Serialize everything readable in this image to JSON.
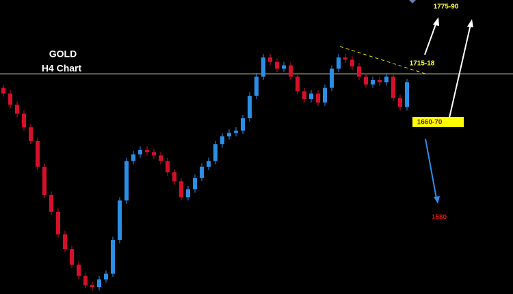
{
  "chart_data": {
    "type": "candlestick",
    "title": "GOLD",
    "subtitle": "H4 Chart",
    "ylim": [
      1512,
      1773
    ],
    "up_color": "#2b8fe6",
    "down_color": "#d4102a",
    "open": [
      1695,
      1690,
      1680,
      1672,
      1660,
      1648,
      1625,
      1600,
      1585,
      1565,
      1552,
      1538,
      1528,
      1520,
      1518,
      1525,
      1530,
      1560,
      1595,
      1630,
      1636,
      1640,
      1638,
      1635,
      1630,
      1620,
      1612,
      1598,
      1605,
      1615,
      1625,
      1630,
      1645,
      1652,
      1655,
      1657,
      1668,
      1688,
      1705,
      1722,
      1718,
      1712,
      1715,
      1705,
      1692,
      1685,
      1690,
      1682,
      1695,
      1712,
      1722,
      1720,
      1714,
      1705,
      1698,
      1702,
      1700,
      1705,
      1686,
      1678
    ],
    "high": [
      1698,
      1693,
      1683,
      1675,
      1663,
      1651,
      1628,
      1603,
      1588,
      1568,
      1555,
      1541,
      1531,
      1523,
      1528,
      1533,
      1563,
      1598,
      1633,
      1639,
      1643,
      1643,
      1641,
      1638,
      1633,
      1623,
      1615,
      1608,
      1618,
      1628,
      1633,
      1648,
      1655,
      1658,
      1660,
      1671,
      1691,
      1708,
      1725,
      1725,
      1721,
      1718,
      1718,
      1708,
      1695,
      1693,
      1693,
      1698,
      1715,
      1725,
      1725,
      1723,
      1717,
      1708,
      1705,
      1705,
      1708,
      1708,
      1689,
      1703
    ],
    "low": [
      1687,
      1677,
      1669,
      1657,
      1645,
      1622,
      1597,
      1582,
      1562,
      1549,
      1535,
      1525,
      1517,
      1515,
      1515,
      1522,
      1527,
      1557,
      1592,
      1627,
      1633,
      1635,
      1632,
      1627,
      1617,
      1609,
      1595,
      1595,
      1602,
      1612,
      1622,
      1627,
      1642,
      1649,
      1652,
      1654,
      1665,
      1685,
      1702,
      1715,
      1709,
      1709,
      1702,
      1689,
      1682,
      1682,
      1679,
      1679,
      1692,
      1709,
      1717,
      1711,
      1702,
      1695,
      1695,
      1697,
      1697,
      1683,
      1675,
      1675
    ],
    "close": [
      1690,
      1680,
      1672,
      1660,
      1648,
      1625,
      1600,
      1585,
      1565,
      1552,
      1538,
      1528,
      1520,
      1518,
      1525,
      1530,
      1560,
      1595,
      1630,
      1636,
      1640,
      1638,
      1635,
      1630,
      1620,
      1612,
      1598,
      1605,
      1615,
      1625,
      1630,
      1645,
      1652,
      1655,
      1657,
      1668,
      1688,
      1705,
      1722,
      1718,
      1712,
      1715,
      1705,
      1692,
      1685,
      1690,
      1682,
      1695,
      1712,
      1722,
      1720,
      1714,
      1705,
      1698,
      1702,
      1700,
      1705,
      1686,
      1678,
      1700
    ],
    "annotations": [
      "1775-90",
      "1715-18",
      "1660-70",
      "1580"
    ]
  }
}
